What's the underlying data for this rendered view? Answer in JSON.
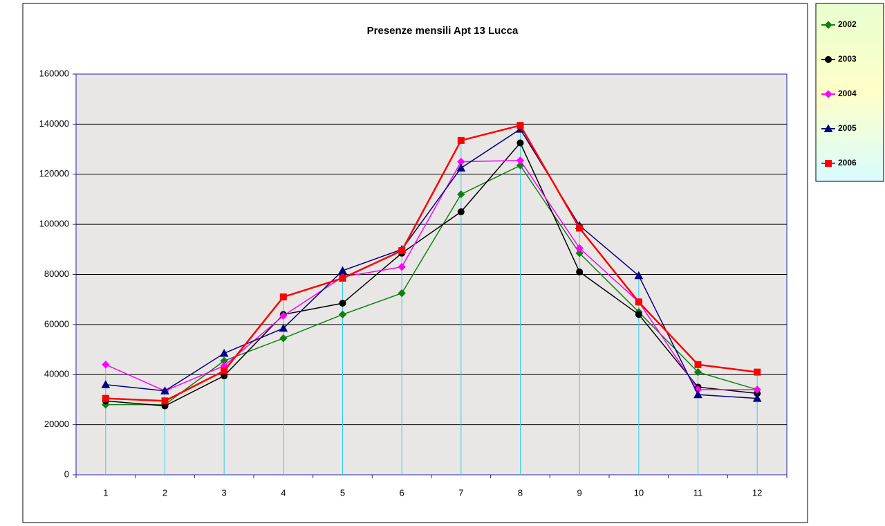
{
  "chart_data": {
    "type": "line",
    "title": "Presenze mensili Apt 13 Lucca",
    "categories": [
      "1",
      "2",
      "3",
      "4",
      "5",
      "6",
      "7",
      "8",
      "9",
      "10",
      "11",
      "12"
    ],
    "series": [
      {
        "name": "2002",
        "color": "#118011",
        "marker": "diamond",
        "values": [
          28000,
          28000,
          45500,
          54500,
          64000,
          72500,
          112000,
          123500,
          88500,
          65000,
          41000,
          34000
        ]
      },
      {
        "name": "2003",
        "color": "#000000",
        "marker": "circle",
        "values": [
          29500,
          27500,
          39500,
          64000,
          68500,
          88500,
          105000,
          132500,
          81000,
          64000,
          35000,
          32500
        ]
      },
      {
        "name": "2004",
        "color": "#ff00ff",
        "marker": "diamond",
        "values": [
          44000,
          33500,
          43500,
          63500,
          79000,
          83000,
          125000,
          125500,
          90500,
          69000,
          34000,
          34000
        ]
      },
      {
        "name": "2005",
        "color": "#000080",
        "marker": "triangle",
        "values": [
          36000,
          33500,
          48500,
          58500,
          81500,
          90000,
          122500,
          138000,
          99500,
          79500,
          32000,
          30500
        ]
      },
      {
        "name": "2006",
        "color": "#ff0000",
        "marker": "square",
        "values": [
          30500,
          29500,
          41500,
          71000,
          78500,
          89500,
          133500,
          139500,
          98500,
          69000,
          44000,
          41000
        ]
      }
    ],
    "ylim": [
      0,
      160000
    ],
    "yticks": [
      0,
      20000,
      40000,
      60000,
      80000,
      100000,
      120000,
      140000,
      160000
    ],
    "grid": true,
    "legend": "right"
  }
}
